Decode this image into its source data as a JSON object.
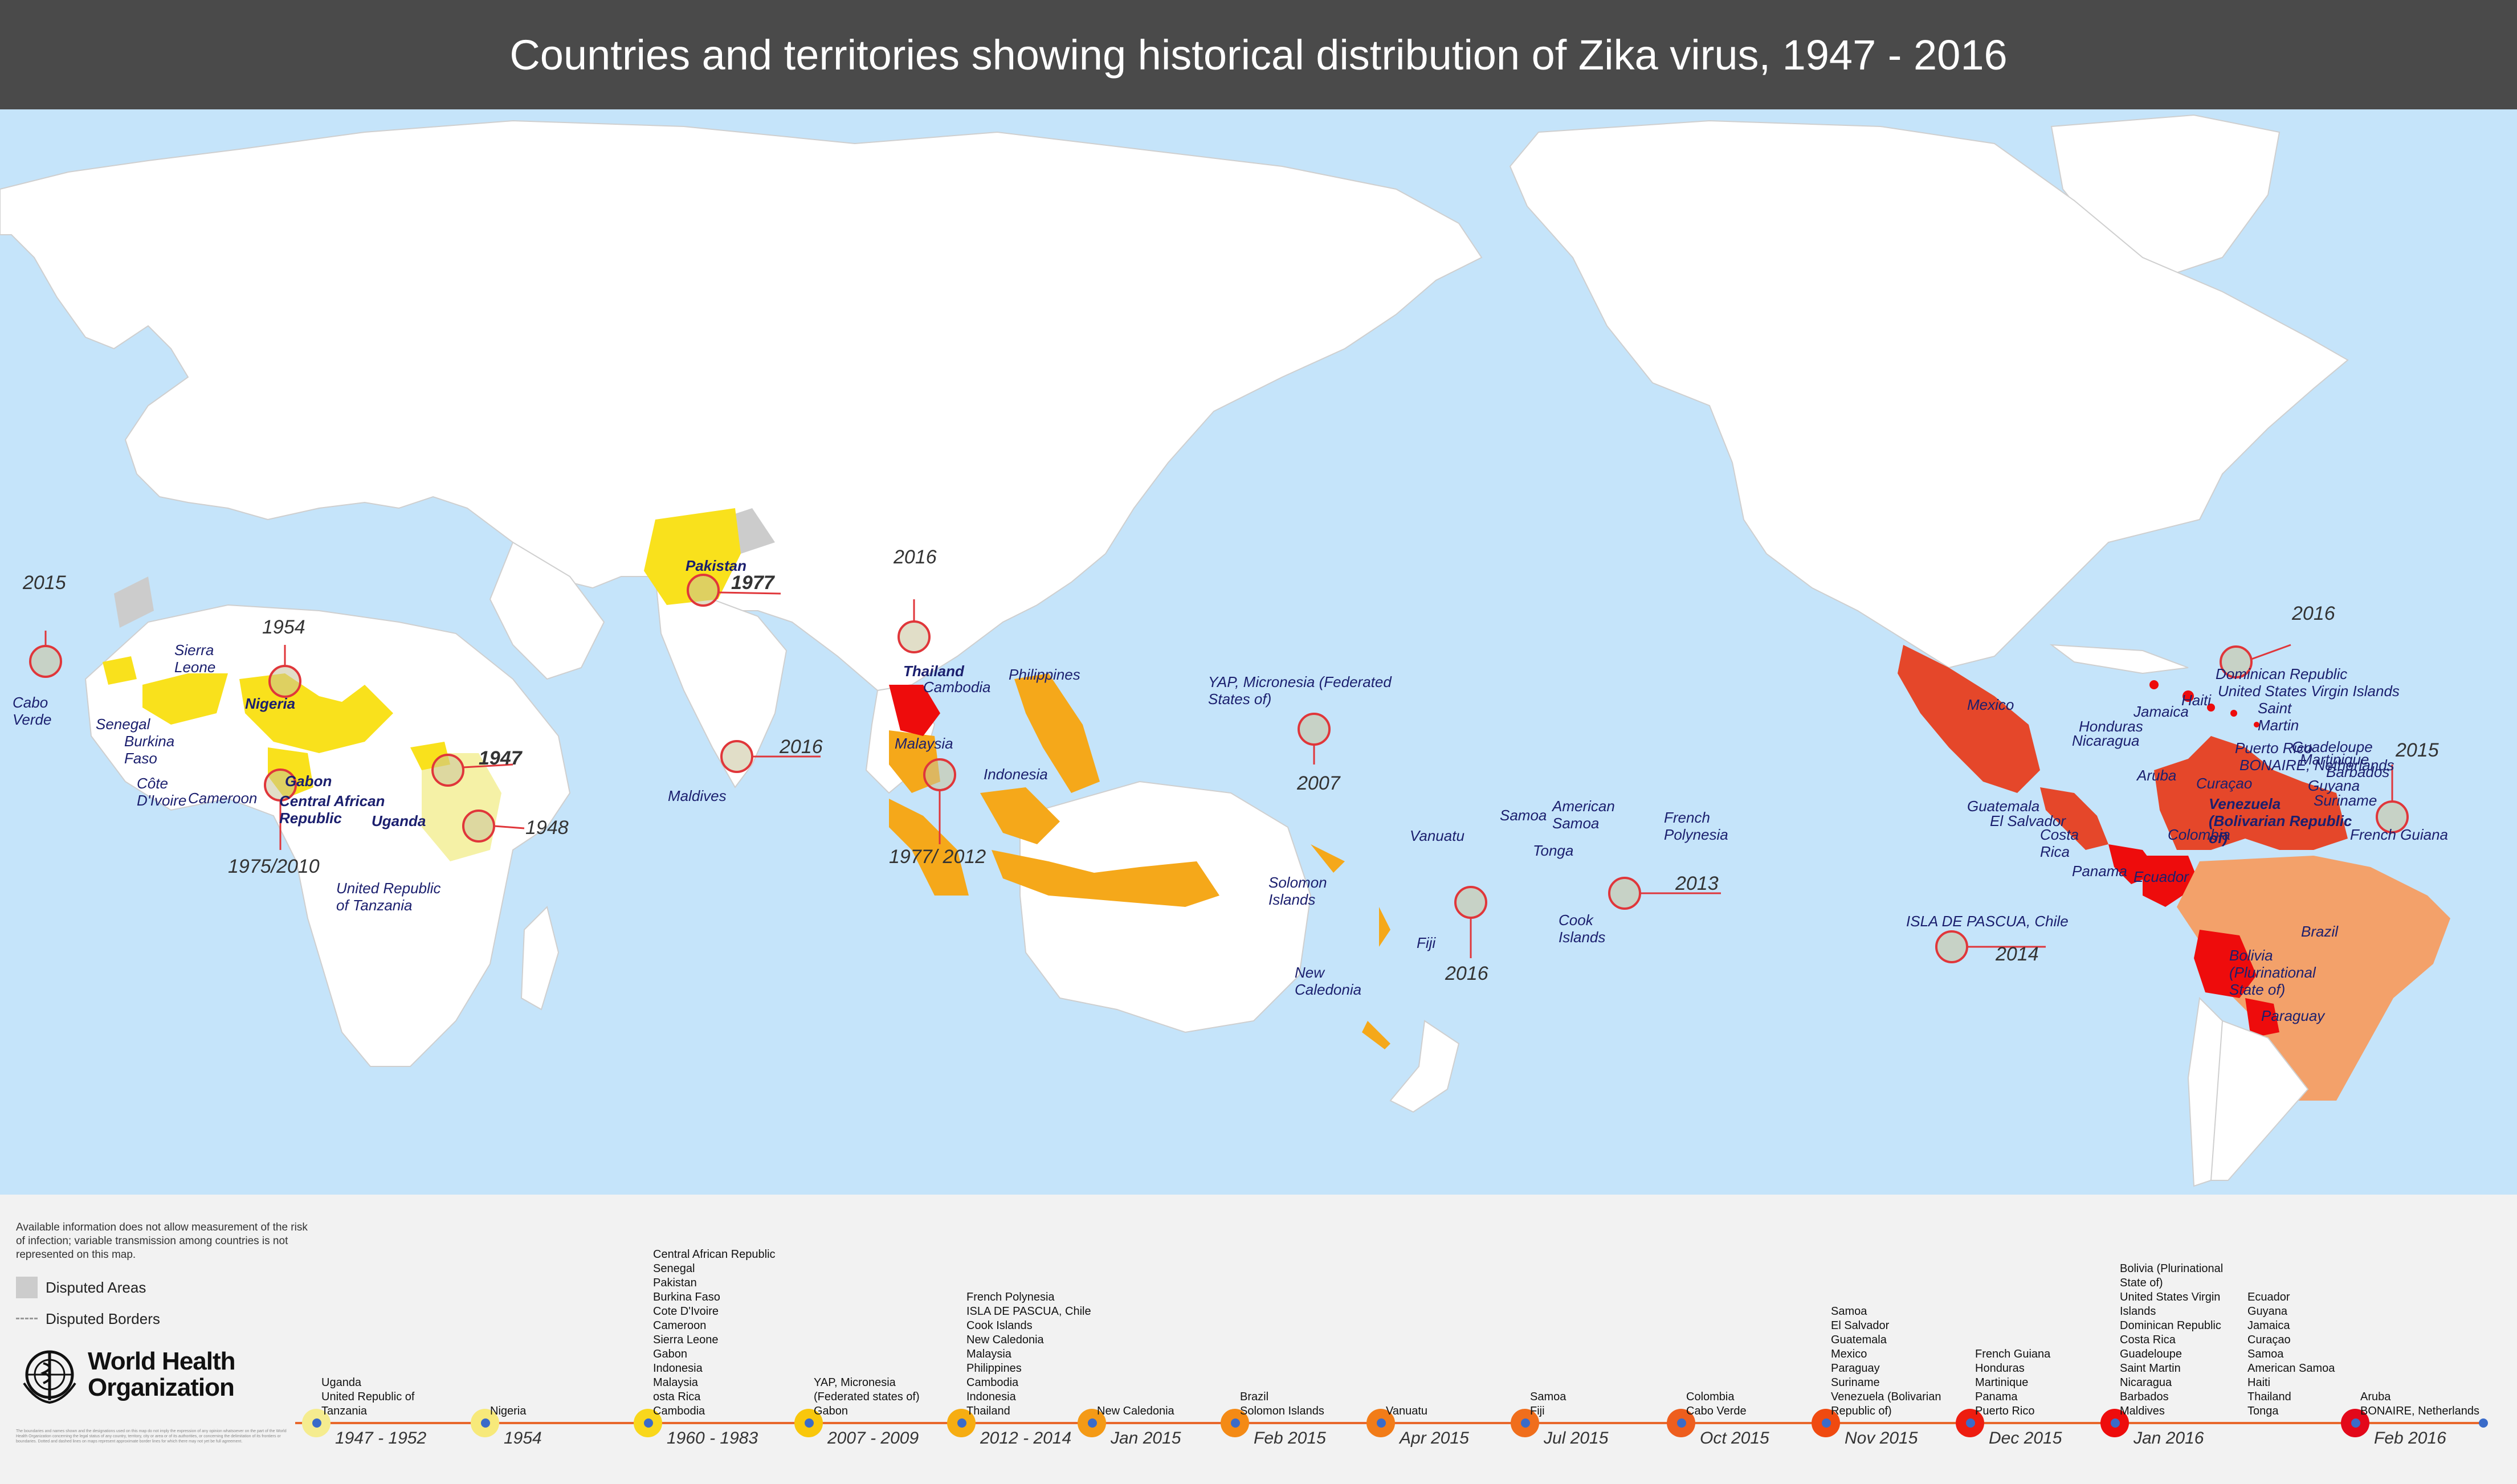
{
  "title": "Countries and territories showing historical distribution of Zika virus, 1947 - 2016",
  "colors": {
    "ocean": "#c5e4fa",
    "land": "#ffffff",
    "period_1947_1983": "#f9e11c",
    "period_2007_2014": "#f5a81a",
    "period_2015": "#e5472a",
    "period_2016": "#ee0c0c",
    "brazil": "#f3a16a",
    "disputed": "#cccccc"
  },
  "map_labels": {
    "cabo_verde": "Cabo\nVerde",
    "senegal": "Senegal",
    "burkina_faso": "Burkina\nFaso",
    "sierra_leone": "Sierra\nLeone",
    "cote_divoire": "Côte\nD'Ivoire",
    "nigeria": "Nigeria",
    "cameroon": "Cameroon",
    "gabon": "Gabon",
    "car": "Central African\nRepublic",
    "uganda": "Uganda",
    "tanzania": "United Republic\nof Tanzania",
    "pakistan": "Pakistan",
    "maldives": "Maldives",
    "thailand": "Thailand",
    "cambodia": "Cambodia",
    "malaysia": "Malaysia",
    "indonesia": "Indonesia",
    "philippines": "Philippines",
    "yap": "YAP, Micronesia (Federated\nStates of)",
    "solomon": "Solomon\nIslands",
    "vanuatu": "Vanuatu",
    "new_caledonia": "New\nCaledonia",
    "fiji": "Fiji",
    "samoa": "Samoa",
    "american_samoa": "American\nSamoa",
    "tonga": "Tonga",
    "cook": "Cook\nIslands",
    "french_polynesia": "French\nPolynesia",
    "isla_de_pascua": "ISLA DE PASCUA, Chile",
    "mexico": "Mexico",
    "guatemala": "Guatemala",
    "el_salvador": "El Salvador",
    "honduras": "Honduras",
    "nicaragua": "Nicaragua",
    "costa_rica": "Costa\nRica",
    "panama": "Panama",
    "jamaica": "Jamaica",
    "haiti": "Haiti",
    "dominican_republic": "Dominican Republic",
    "usvi": "United States Virgin Islands",
    "saint_martin": "Saint\nMartin",
    "puerto_rico": "Puerto Rico",
    "guadeloupe": "Guadeloupe",
    "martinique": "Martinique",
    "barbados": "Barbados",
    "aruba": "Aruba",
    "bonaire": "BONAIRE, Netherlands",
    "curacao": "Curaçao",
    "venezuela": "Venezuela\n(Bolivarian Republic\nof)",
    "guyana": "Guyana",
    "suriname": "Suriname",
    "french_guiana": "French Guiana",
    "colombia": "Colombia",
    "ecuador": "Ecuador",
    "brazil": "Brazil",
    "bolivia": "Bolivia\n(Plurinational\nState of)",
    "paraguay": "Paraguay"
  },
  "year_labels": {
    "cabo_verde": "2015",
    "nigeria": "1954",
    "gabon": "1975/2010",
    "uganda": "1947",
    "tanzania": "1948",
    "pakistan": "1977",
    "maldives": "2016",
    "thailand": "2016",
    "malaysia": "1977/ 2012",
    "yap": "2007",
    "fiji": "2016",
    "french_polynesia": "2013",
    "isla_de_pascua": "2014",
    "french_guiana": "2015",
    "caribbean": "2016"
  },
  "legend": {
    "note": "Available information does not allow measurement of the risk of infection; variable transmission among countries is not represented on this map.",
    "disputed_areas": "Disputed Areas",
    "disputed_borders": "Disputed Borders",
    "who_name": "World Health\nOrganization",
    "disclaimer": "The boundaries and names shown and the designations used on this map do not imply the expression of any opinion whatsoever on the part of the World Health Organization concerning the legal status of any country, territory, city or area or of its authorities, or concerning the delimitation of its frontiers or boundaries. Dotted and dashed lines on maps represent approximate border lines for which there may not yet be full agreement."
  },
  "timeline": [
    {
      "period": "1947 - 1952",
      "countries": "Uganda\nUnited Republic of\nTanzania",
      "color": "#f5ec8f"
    },
    {
      "period": "1954",
      "countries": "Nigeria",
      "color": "#f7e97a"
    },
    {
      "period": "1960 - 1983",
      "countries": "Central African Republic\nSenegal\nPakistan\nBurkina Faso\nCote D'Ivoire\nCameroon\nSierra Leone\nGabon\nIndonesia\nMalaysia\nosta Rica\nCambodia",
      "color": "#f9d71c"
    },
    {
      "period": "2007 - 2009",
      "countries": "YAP, Micronesia\n(Federated states of)\nGabon",
      "color": "#f9c70c"
    },
    {
      "period": "2012 - 2014",
      "countries": "French Polynesia\nISLA DE PASCUA, Chile\nCook Islands\nNew Caledonia\nMalaysia\nPhilippines\nCambodia\nIndonesia\nThailand",
      "color": "#f6ad12"
    },
    {
      "period": "Jan 2015",
      "countries": "New Caledonia",
      "color": "#f49a16"
    },
    {
      "period": "Feb 2015",
      "countries": "Brazil\nSolomon Islands",
      "color": "#f48a15"
    },
    {
      "period": "Apr 2015",
      "countries": "Vanuatu",
      "color": "#f27c18"
    },
    {
      "period": "Jul 2015",
      "countries": "Samoa\nFiji",
      "color": "#f06e1c"
    },
    {
      "period": "Oct 2015",
      "countries": "Colombia\nCabo Verde",
      "color": "#ee5e1e"
    },
    {
      "period": "Nov 2015",
      "countries": "Samoa\nEl Salvador\nGuatemala\nMexico\nParaguay\nSuriname\nVenezuela (Bolivarian\nRepublic of)",
      "color": "#f04a10"
    },
    {
      "period": "Dec 2015",
      "countries": "French Guiana\nHonduras\nMartinique\nPanama\nPuerto Rico",
      "color": "#ee1d10"
    },
    {
      "period": "Jan 2016",
      "countries": "Bolivia (Plurinational\nState of)\nUnited States Virgin\nIslands\nDominican Republic\nCosta Rica\nGuadeloupe\nSaint Martin\nNicaragua\nBarbados\nMaldives",
      "countries2": "Ecuador\nGuyana\nJamaica\nCuraçao\nSamoa\nAmerican Samoa\nHaiti\nThailand\nTonga",
      "color": "#ee0c0c"
    },
    {
      "period": "Feb 2016",
      "countries": "Aruba\nBONAIRE, Netherlands",
      "color": "#e3081a"
    }
  ]
}
